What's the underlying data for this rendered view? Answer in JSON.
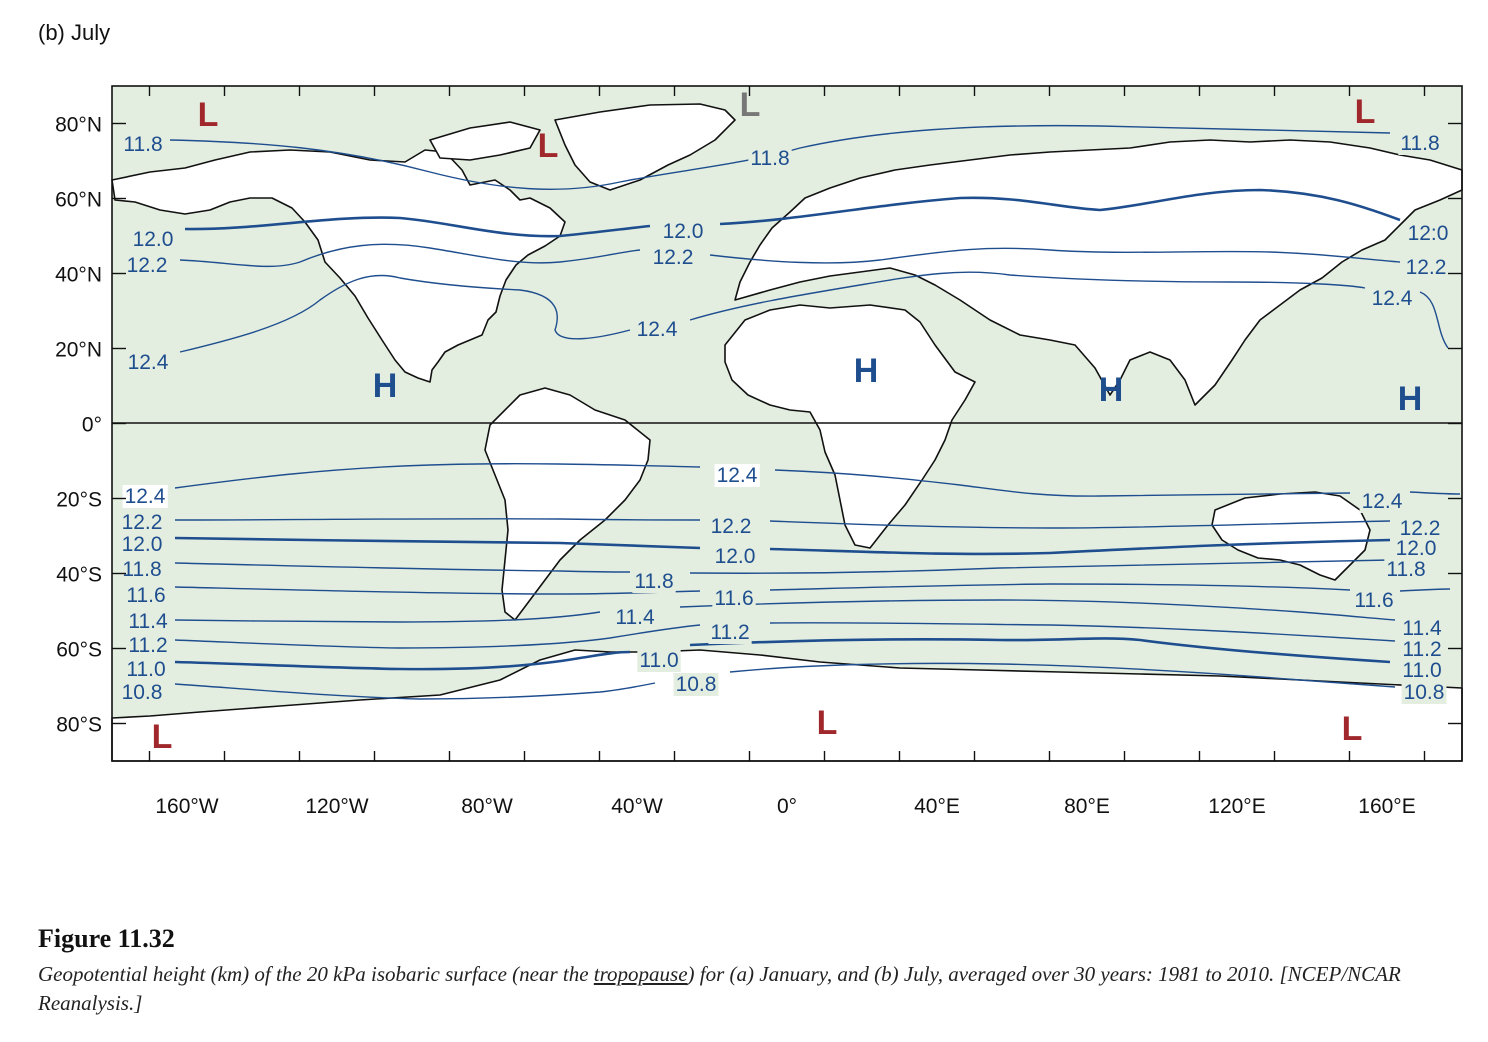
{
  "panel_label": "(b) July",
  "map": {
    "latitude_labels": [
      "80°N",
      "60°N",
      "40°N",
      "20°N",
      "0°",
      "20°S",
      "40°S",
      "60°S",
      "80°S"
    ],
    "longitude_labels": [
      "160°W",
      "120°W",
      "80°W",
      "40°W",
      "0°",
      "40°E",
      "80°E",
      "120°E",
      "160°E"
    ],
    "colors": {
      "ocean": "#e3eee0",
      "land": "#ffffff",
      "contour": "#1f4e8f",
      "low": "#a0282c",
      "low_gray": "#777777",
      "high": "#1f4e8f"
    },
    "contour_labels": [
      "11.8",
      "11.8",
      "11.8",
      "12.0",
      "12.0",
      "12:0",
      "12.2",
      "12.2",
      "12.2",
      "12.4",
      "12.4",
      "12.4",
      "12.4",
      "12.4",
      "12.4",
      "12.2",
      "12.2",
      "12.2",
      "12.0",
      "12.0",
      "12.0",
      "11.8",
      "11.8",
      "11.8",
      "11.6",
      "11.6",
      "11.6",
      "11.4",
      "11.4",
      "11.4",
      "11.2",
      "11.2",
      "11.2",
      "11.0",
      "11.0",
      "11.0",
      "10.8",
      "10.8",
      "10.8"
    ],
    "pressure_centers": [
      "L",
      "L",
      "L",
      "L",
      "H",
      "H",
      "H",
      "H",
      "L",
      "L",
      "L"
    ]
  },
  "caption": {
    "figure_number": "Figure 11.32",
    "text_before": "Geopotential height (km) of the 20 kPa isobaric surface (near the ",
    "text_underlined": "tropopause",
    "text_after": ") for (a) January, and (b) July, averaged over 30 years: 1981 to 2010.  [NCEP/NCAR Reanalysis.]"
  }
}
